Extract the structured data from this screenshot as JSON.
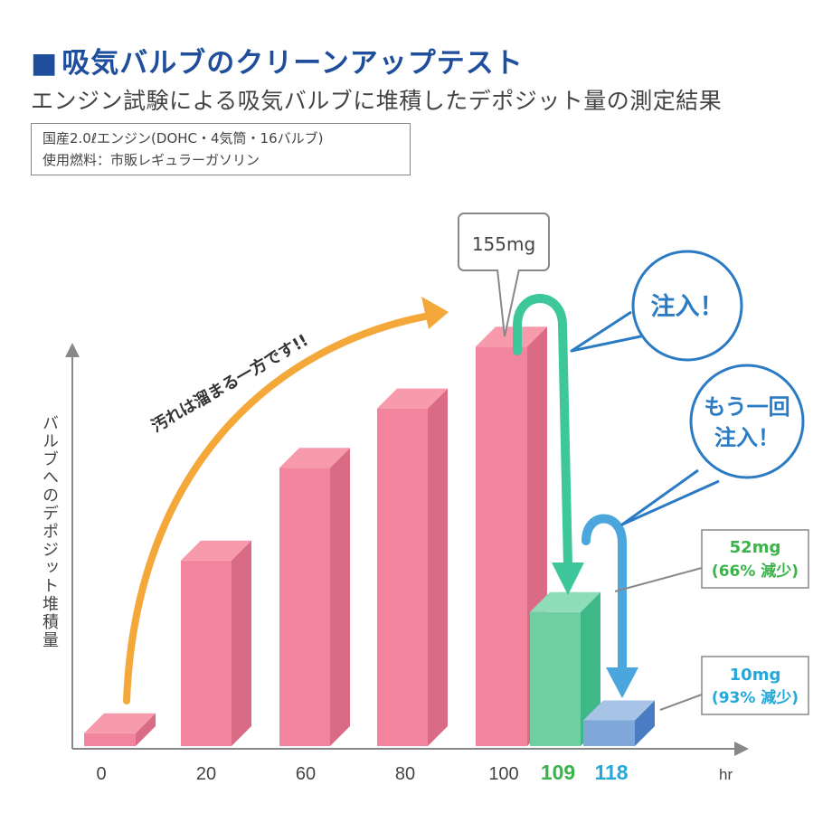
{
  "header": {
    "title": "吸気バルブのクリーンアップテスト",
    "title_marker": "■",
    "subtitle": "エンジン試験による吸気バルブに堆積したデポジット量の測定結果"
  },
  "spec": {
    "engine": "国産2.0ℓエンジン(DOHC・4気筒・16バルブ)",
    "fuel": "使用燃料：市販レギュラーガソリン"
  },
  "annotations": {
    "trend_text": "汚れは溜まる一方です!!",
    "inject1": "注入！",
    "inject2_line1": "もう一回",
    "inject2_line2": "注入！",
    "peak_label": "155mg",
    "green_line1": "52mg",
    "green_line2": "(66% 減少)",
    "blue_line1": "10mg",
    "blue_line2": "(93% 減少)"
  },
  "colors": {
    "pink_front": "#f3849e",
    "pink_top": "#f79aac",
    "pink_side": "#d96b84",
    "green_front": "#6fcfa0",
    "green_top": "#8fdcb8",
    "green_side": "#3fb887",
    "blue_front": "#7fa8d8",
    "blue_top": "#a7c4e6",
    "blue_side": "#4a7cc4",
    "orange_arrow": "#f5a83a",
    "teal_arrow": "#3ec79a",
    "blue_arrow": "#4aa6dd",
    "callout_blue": "#2a7bc4",
    "label_green": "#3bb24a",
    "label_cyan": "#23a8d9",
    "axis": "#888888"
  },
  "chart_data": {
    "type": "bar",
    "ylabel": "バルブへのデポジット堆積量",
    "xunit": "hr",
    "categories": [
      "0",
      "20",
      "60",
      "80",
      "100",
      "109",
      "118"
    ],
    "values": [
      5,
      72,
      108,
      131,
      155,
      52,
      10
    ],
    "bar_colors": [
      "pink",
      "pink",
      "pink",
      "pink",
      "pink",
      "green",
      "blue"
    ],
    "ylim": [
      0,
      175
    ],
    "grid": false,
    "legend": "none"
  }
}
